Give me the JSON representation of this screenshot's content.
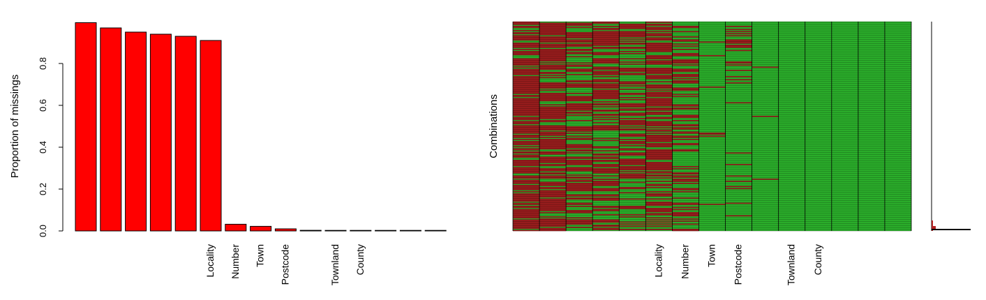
{
  "chart_data": [
    {
      "type": "bar",
      "title": "",
      "ylabel": "Proportion of missings",
      "xlabel": "",
      "ylim": [
        0,
        1.0
      ],
      "yticks": [
        0.0,
        0.2,
        0.4,
        0.6,
        0.8
      ],
      "bar_color": "#FF0000",
      "categories": [
        "",
        "",
        "",
        "",
        "",
        "Locality",
        "Number",
        "Town",
        "Postcode",
        "",
        "Townland",
        "County",
        "",
        "",
        ""
      ],
      "values": [
        0.995,
        0.97,
        0.95,
        0.94,
        0.93,
        0.91,
        0.032,
        0.022,
        0.01,
        0.003,
        0.001,
        0.0005,
        0.0003,
        0.0002,
        0.0001
      ]
    },
    {
      "type": "heatmap",
      "title": "",
      "ylabel": "Combinations",
      "xlabel": "",
      "missing_color": "#B22222",
      "observed_color": "#32CD32",
      "columns": [
        "",
        "",
        "",
        "",
        "",
        "Locality",
        "Number",
        "Town",
        "Postcode",
        "",
        "Townland",
        "County",
        "",
        "",
        ""
      ],
      "column_missing_proportion": [
        0.78,
        0.76,
        0.52,
        0.55,
        0.5,
        0.62,
        0.45,
        0.05,
        0.15,
        0.03,
        0.0,
        0.0,
        0.0,
        0.0,
        0.0
      ],
      "combination_frequency": "right-margin bar plot, one dominant combination"
    }
  ]
}
